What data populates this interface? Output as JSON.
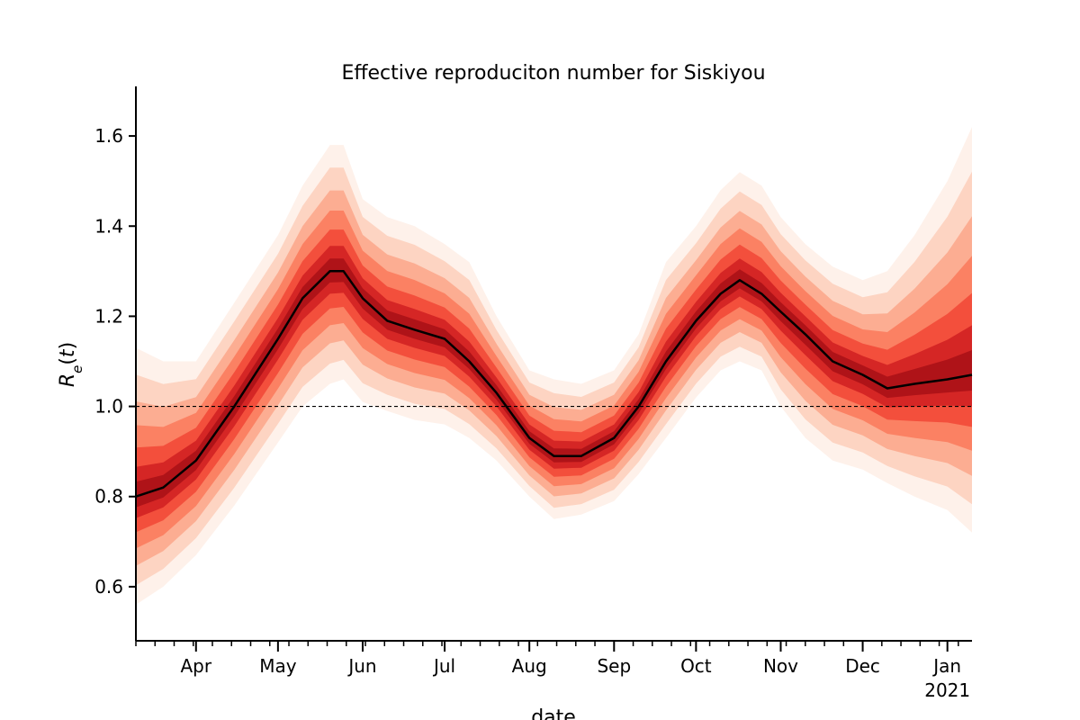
{
  "chart_data": {
    "type": "area",
    "title": "Effective reproduciton number for Siskiyou",
    "xlabel": "date",
    "ylabel": "R_e(t)",
    "ylim": [
      0.48,
      1.71
    ],
    "xlim": [
      "2020-03-10",
      "2021-01-10"
    ],
    "yticks": [
      0.6,
      0.8,
      1.0,
      1.2,
      1.4,
      1.6
    ],
    "ytick_labels": [
      "0.6",
      "0.8",
      "1.0",
      "1.2",
      "1.4",
      "1.6"
    ],
    "xticks": [
      {
        "date": "2020-04-01",
        "label": "Apr"
      },
      {
        "date": "2020-05-01",
        "label": "May"
      },
      {
        "date": "2020-06-01",
        "label": "Jun"
      },
      {
        "date": "2020-07-01",
        "label": "Jul"
      },
      {
        "date": "2020-08-01",
        "label": "Aug"
      },
      {
        "date": "2020-09-01",
        "label": "Sep"
      },
      {
        "date": "2020-10-01",
        "label": "Oct"
      },
      {
        "date": "2020-11-01",
        "label": "Nov"
      },
      {
        "date": "2020-12-01",
        "label": "Dec"
      },
      {
        "date": "2021-01-01",
        "label": "Jan"
      }
    ],
    "year_label": "2021",
    "reference_line": 1.0,
    "grid": false,
    "series": [
      {
        "x": [
          "2020-03-10",
          "2020-03-20",
          "2020-04-01",
          "2020-04-15",
          "2020-05-01",
          "2020-05-10",
          "2020-05-20",
          "2020-05-25",
          "2020-06-01",
          "2020-06-10",
          "2020-06-20",
          "2020-07-01",
          "2020-07-10",
          "2020-07-20",
          "2020-08-01",
          "2020-08-10",
          "2020-08-20",
          "2020-09-01",
          "2020-09-10",
          "2020-09-20",
          "2020-10-01",
          "2020-10-10",
          "2020-10-17",
          "2020-10-25",
          "2020-11-01",
          "2020-11-10",
          "2020-11-20",
          "2020-12-01",
          "2020-12-10",
          "2020-12-20",
          "2021-01-01",
          "2021-01-10"
        ],
        "median": [
          0.8,
          0.82,
          0.88,
          1.0,
          1.15,
          1.24,
          1.3,
          1.3,
          1.24,
          1.19,
          1.17,
          1.15,
          1.1,
          1.03,
          0.93,
          0.89,
          0.89,
          0.93,
          1.0,
          1.1,
          1.19,
          1.25,
          1.28,
          1.25,
          1.21,
          1.16,
          1.1,
          1.07,
          1.04,
          1.05,
          1.06,
          1.07
        ],
        "lower_5": [
          0.56,
          0.6,
          0.67,
          0.78,
          0.92,
          1.0,
          1.05,
          1.06,
          1.01,
          0.99,
          0.97,
          0.96,
          0.93,
          0.88,
          0.8,
          0.75,
          0.76,
          0.79,
          0.85,
          0.93,
          1.02,
          1.08,
          1.1,
          1.08,
          1.0,
          0.93,
          0.88,
          0.86,
          0.83,
          0.8,
          0.77,
          0.72
        ],
        "upper_95": [
          1.13,
          1.1,
          1.1,
          1.23,
          1.38,
          1.49,
          1.58,
          1.58,
          1.46,
          1.42,
          1.4,
          1.36,
          1.32,
          1.2,
          1.08,
          1.06,
          1.05,
          1.08,
          1.16,
          1.32,
          1.4,
          1.48,
          1.52,
          1.49,
          1.42,
          1.36,
          1.31,
          1.28,
          1.3,
          1.38,
          1.5,
          1.62
        ]
      }
    ]
  }
}
